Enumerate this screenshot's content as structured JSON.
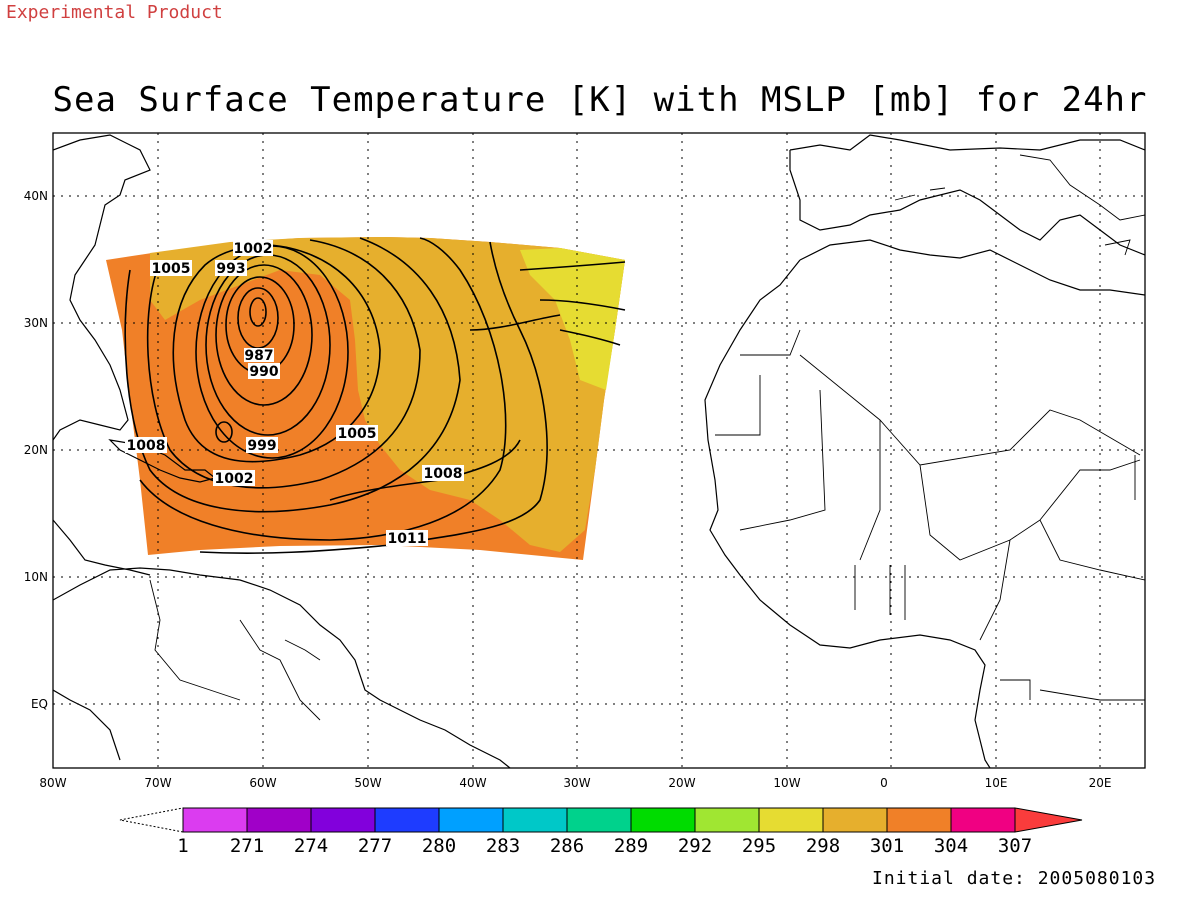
{
  "header": {
    "product_note": "Experimental Product",
    "title": "Sea Surface Temperature [K] with MSLP [mb] for 24hr",
    "initial_date": "Initial date: 2005080103"
  },
  "map": {
    "lat_labels": [
      "40N",
      "30N",
      "20N",
      "10N",
      "EQ"
    ],
    "lon_labels": [
      "80W",
      "70W",
      "60W",
      "50W",
      "40W",
      "30W",
      "20W",
      "10W",
      "0",
      "10E",
      "20E"
    ],
    "isobar_labels": [
      {
        "text": "1002",
        "mb": 1002
      },
      {
        "text": "1005",
        "mb": 1005
      },
      {
        "text": "993",
        "mb": 993
      },
      {
        "text": "987",
        "mb": 987
      },
      {
        "text": "990",
        "mb": 990
      },
      {
        "text": "1008",
        "mb": 1008
      },
      {
        "text": "999",
        "mb": 999
      },
      {
        "text": "1005",
        "mb": 1005
      },
      {
        "text": "1002",
        "mb": 1002
      },
      {
        "text": "1008",
        "mb": 1008
      },
      {
        "text": "1011",
        "mb": 1011
      }
    ],
    "colors": {
      "sst_304": "#f08028",
      "sst_301": "#e6af2d",
      "sst_298": "#e6dc32"
    }
  },
  "colorbar": {
    "labels": [
      "1",
      "271",
      "274",
      "277",
      "280",
      "283",
      "286",
      "289",
      "292",
      "295",
      "298",
      "301",
      "304",
      "307"
    ],
    "colors": [
      "#db3cf0",
      "#a000c8",
      "#8200dc",
      "#1e3cff",
      "#00a0ff",
      "#00c8c8",
      "#00d28c",
      "#00dc00",
      "#a0e632",
      "#e6dc32",
      "#e6af2d",
      "#f08028",
      "#f00082"
    ],
    "above_color": "#fa3c3c"
  }
}
